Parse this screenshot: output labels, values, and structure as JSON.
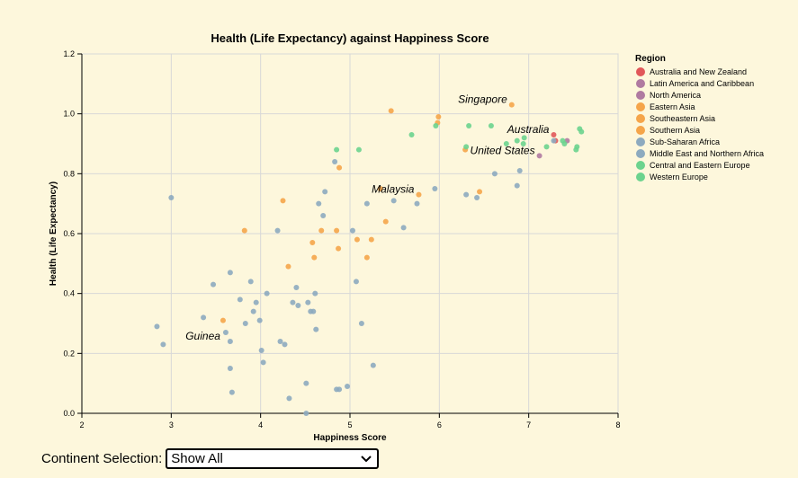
{
  "chart_data": {
    "type": "scatter",
    "title": "Health (Life Expectancy) against Happiness Score",
    "xlabel": "Happiness Score",
    "ylabel": "Health (Life Expectancy)",
    "xlim": [
      2,
      8
    ],
    "ylim": [
      0,
      1.2
    ],
    "xticks": [
      "2",
      "3",
      "4",
      "5",
      "6",
      "7",
      "8"
    ],
    "yticks": [
      "0.0",
      "0.2",
      "0.4",
      "0.6",
      "0.8",
      "1.0",
      "1.2"
    ],
    "grid": true,
    "legend_title": "Region",
    "legend_position": "right",
    "series": [
      {
        "name": "Australia and New Zealand",
        "color": "#e15759",
        "points": [
          [
            7.28,
            0.93
          ],
          [
            7.3,
            0.91
          ]
        ]
      },
      {
        "name": "Latin America and Caribbean",
        "color": "#b07aa1",
        "points": []
      },
      {
        "name": "North America",
        "color": "#b07aa1",
        "points": [
          [
            7.12,
            0.86
          ],
          [
            7.43,
            0.91
          ]
        ]
      },
      {
        "name": "Eastern Asia",
        "color": "#f5a54a",
        "points": [
          [
            6.81,
            1.03
          ],
          [
            5.99,
            0.99
          ],
          [
            5.98,
            0.97
          ],
          [
            6.29,
            0.88
          ],
          [
            5.46,
            1.01
          ]
        ]
      },
      {
        "name": "Southeastern Asia",
        "color": "#f5a54a",
        "points": [
          [
            5.34,
            0.75
          ],
          [
            5.4,
            0.64
          ],
          [
            5.77,
            0.73
          ],
          [
            6.45,
            0.74
          ],
          [
            4.88,
            0.82
          ],
          [
            4.25,
            0.71
          ],
          [
            5.08,
            0.58
          ],
          [
            4.68,
            0.61
          ],
          [
            5.24,
            0.58
          ],
          [
            4.58,
            0.57
          ],
          [
            4.85,
            0.61
          ],
          [
            4.6,
            0.52
          ],
          [
            4.87,
            0.55
          ],
          [
            5.19,
            0.52
          ],
          [
            4.31,
            0.49
          ],
          [
            3.58,
            0.31
          ]
        ]
      },
      {
        "name": "Southern Asia",
        "color": "#f5a54a",
        "points": [
          [
            3.82,
            0.61
          ]
        ]
      },
      {
        "name": "Sub-Saharan Africa",
        "color": "#8daabf",
        "points": [
          [
            3.0,
            0.72
          ],
          [
            3.36,
            0.32
          ],
          [
            2.84,
            0.29
          ],
          [
            2.91,
            0.23
          ],
          [
            3.47,
            0.43
          ],
          [
            3.66,
            0.47
          ],
          [
            3.66,
            0.24
          ],
          [
            3.61,
            0.27
          ],
          [
            3.66,
            0.15
          ],
          [
            3.68,
            0.07
          ],
          [
            3.77,
            0.38
          ],
          [
            3.83,
            0.3
          ],
          [
            3.89,
            0.44
          ],
          [
            3.92,
            0.34
          ],
          [
            3.95,
            0.37
          ],
          [
            3.99,
            0.31
          ],
          [
            4.01,
            0.21
          ],
          [
            4.03,
            0.17
          ],
          [
            4.07,
            0.4
          ],
          [
            4.19,
            0.61
          ],
          [
            4.22,
            0.24
          ],
          [
            4.27,
            0.23
          ],
          [
            4.32,
            0.05
          ],
          [
            4.36,
            0.37
          ],
          [
            4.4,
            0.42
          ],
          [
            4.42,
            0.36
          ],
          [
            4.51,
            0.1
          ],
          [
            4.51,
            0.0
          ],
          [
            4.53,
            0.37
          ],
          [
            4.56,
            0.34
          ],
          [
            4.59,
            0.34
          ],
          [
            4.61,
            0.4
          ],
          [
            4.62,
            0.28
          ],
          [
            4.85,
            0.08
          ],
          [
            4.88,
            0.08
          ],
          [
            4.97,
            0.09
          ],
          [
            5.07,
            0.44
          ],
          [
            5.13,
            0.3
          ],
          [
            5.26,
            0.16
          ]
        ]
      },
      {
        "name": "Middle East and Northern Africa",
        "color": "#8daabf",
        "points": [
          [
            4.65,
            0.7
          ],
          [
            4.7,
            0.66
          ],
          [
            4.72,
            0.74
          ],
          [
            4.83,
            0.84
          ],
          [
            5.03,
            0.61
          ],
          [
            5.19,
            0.7
          ],
          [
            5.49,
            0.71
          ],
          [
            5.6,
            0.62
          ],
          [
            5.75,
            0.7
          ],
          [
            5.95,
            0.75
          ],
          [
            6.3,
            0.73
          ],
          [
            6.42,
            0.72
          ],
          [
            6.62,
            0.8
          ],
          [
            6.87,
            0.76
          ],
          [
            6.9,
            0.81
          ],
          [
            7.28,
            0.91
          ]
        ]
      },
      {
        "name": "Central and Eastern Europe",
        "color": "#6cd38e",
        "points": [
          [
            4.85,
            0.88
          ],
          [
            5.1,
            0.88
          ],
          [
            5.69,
            0.93
          ],
          [
            5.96,
            0.96
          ],
          [
            6.3,
            0.89
          ]
        ]
      },
      {
        "name": "Western Europe",
        "color": "#6cd38e",
        "points": [
          [
            6.33,
            0.96
          ],
          [
            6.58,
            0.96
          ],
          [
            6.75,
            0.9
          ],
          [
            6.87,
            0.91
          ],
          [
            6.94,
            0.9
          ],
          [
            6.95,
            0.92
          ],
          [
            7.2,
            0.89
          ],
          [
            7.38,
            0.91
          ],
          [
            7.4,
            0.9
          ],
          [
            7.53,
            0.88
          ],
          [
            7.54,
            0.89
          ],
          [
            7.57,
            0.95
          ],
          [
            7.59,
            0.94
          ]
        ]
      }
    ],
    "annotations": [
      {
        "text": "Singapore",
        "x": 6.81,
        "y": 1.03
      },
      {
        "text": "Australia",
        "x": 7.28,
        "y": 0.93
      },
      {
        "text": "United States",
        "x": 7.12,
        "y": 0.86
      },
      {
        "text": "Malaysia",
        "x": 5.77,
        "y": 0.73
      },
      {
        "text": "Guinea",
        "x": 3.6,
        "y": 0.24
      }
    ]
  },
  "controls": {
    "continent_label": "Continent Selection:",
    "continent_selected": "Show All",
    "chevron_icon": "chevron-down-icon"
  }
}
